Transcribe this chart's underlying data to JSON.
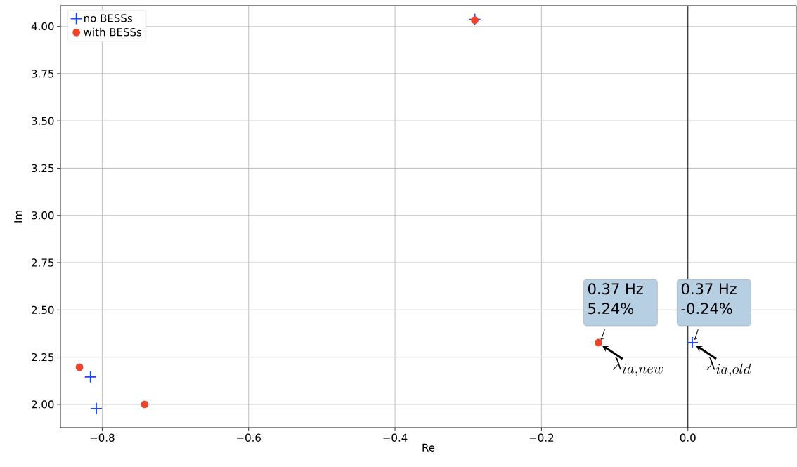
{
  "chart_data": {
    "type": "scatter",
    "xlabel": "Re",
    "ylabel": "Im",
    "series": [
      {
        "name": "no BESSs",
        "color": "#1a47f5",
        "marker": "cross",
        "x": [
          -0.291,
          -0.816,
          -0.808,
          0.006
        ],
        "values": [
          4.037,
          2.145,
          1.978,
          2.327
        ]
      },
      {
        "name": "with BESSs",
        "color": "#f0432a",
        "marker": "circle",
        "x": [
          -0.291,
          -0.831,
          -0.742,
          -0.122
        ],
        "values": [
          4.033,
          2.197,
          2.0,
          2.327
        ]
      }
    ],
    "xlim": [
      -0.857,
      0.148
    ],
    "ylim": [
      1.877,
      4.11
    ],
    "xticks": [
      {
        "value": -0.8,
        "label": "−0.8"
      },
      {
        "value": -0.6,
        "label": "−0.6"
      },
      {
        "value": -0.4,
        "label": "−0.4"
      },
      {
        "value": -0.2,
        "label": "−0.2"
      },
      {
        "value": 0.0,
        "label": "0.0"
      }
    ],
    "yticks": [
      {
        "value": 2.0,
        "label": "2.00"
      },
      {
        "value": 2.25,
        "label": "2.25"
      },
      {
        "value": 2.5,
        "label": "2.50"
      },
      {
        "value": 2.75,
        "label": "2.75"
      },
      {
        "value": 3.0,
        "label": "3.00"
      },
      {
        "value": 3.25,
        "label": "3.25"
      },
      {
        "value": 3.5,
        "label": "3.50"
      },
      {
        "value": 3.75,
        "label": "3.75"
      },
      {
        "value": 4.0,
        "label": "4.00"
      }
    ],
    "ref_lines": [
      {
        "axis": "x",
        "value": 0.0,
        "color": "#000000"
      }
    ],
    "annotations": [
      "0.37 Hz",
      "5.24%",
      {
        "text": "\\lambda_{ia,new}",
        "x": -0.122,
        "y": 2.327
      },
      "0.37 Hz",
      "-0.24%",
      {
        "text": "\\lambda_{ia,old}",
        "x": 0.006,
        "y": 2.327
      }
    ],
    "grid": true,
    "legend": "top left"
  }
}
